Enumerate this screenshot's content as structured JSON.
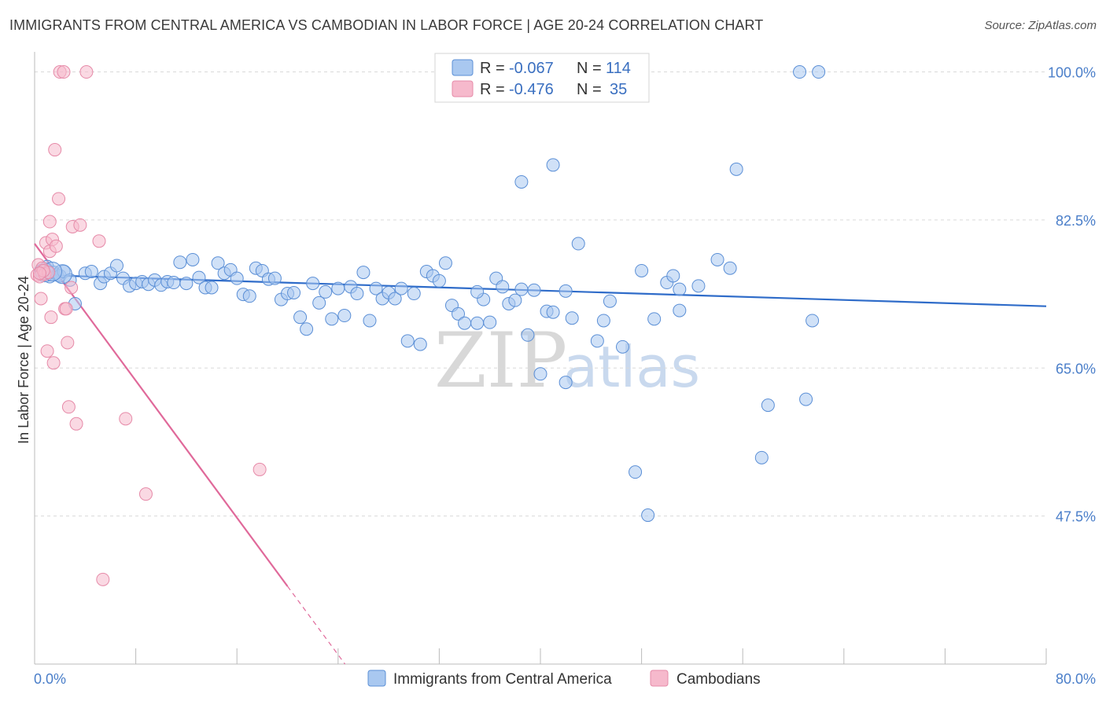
{
  "title": "IMMIGRANTS FROM CENTRAL AMERICA VS CAMBODIAN IN LABOR FORCE | AGE 20-24 CORRELATION CHART",
  "source": "Source: ZipAtlas.com",
  "watermark": {
    "part1": "ZIP",
    "part2": "atlas"
  },
  "colors": {
    "blue_fill": "#a9c8f0",
    "blue_stroke": "#5b8fd6",
    "blue_line": "#2f6cc9",
    "pink_fill": "#f6b9cc",
    "pink_stroke": "#e68aa8",
    "pink_line": "#e0699a",
    "tick_label": "#4a7ec9",
    "grid": "#d9d9d9"
  },
  "legend": {
    "row1": {
      "r_label": "R =",
      "r_value": "-0.067",
      "n_label": "N =",
      "n_value": "114"
    },
    "row2": {
      "r_label": "R =",
      "r_value": "-0.476",
      "n_label": "N =",
      "n_value": "35"
    }
  },
  "bottom_legend": {
    "series1": "Immigrants from Central America",
    "series2": "Cambodians"
  },
  "chart_data": {
    "type": "scatter",
    "xlabel": "",
    "ylabel": "In Labor Force | Age 20-24",
    "xlim": [
      0,
      80
    ],
    "ylim": [
      30,
      102
    ],
    "x_tick_labels": [
      "0.0%",
      "80.0%"
    ],
    "y_ticks": [
      47.5,
      65.0,
      82.5,
      100.0
    ],
    "y_tick_labels": [
      "47.5%",
      "65.0%",
      "82.5%",
      "100.0%"
    ],
    "grid": true,
    "series": [
      {
        "name": "Immigrants from Central America",
        "color": "#a9c8f0",
        "trend": {
          "x": [
            0.3,
            80
          ],
          "y": [
            76.0,
            72.3
          ]
        },
        "points": [
          [
            0.5,
            76.5
          ],
          [
            0.8,
            76.2
          ],
          [
            1.0,
            77.0
          ],
          [
            1.2,
            75.8
          ],
          [
            1.5,
            76.3
          ],
          [
            1.8,
            76.0
          ],
          [
            2.0,
            75.9
          ],
          [
            2.3,
            76.4
          ],
          [
            2.8,
            75.4
          ],
          [
            3.2,
            72.6
          ],
          [
            4.0,
            76.2
          ],
          [
            4.5,
            76.4
          ],
          [
            5.2,
            75.0
          ],
          [
            5.5,
            75.8
          ],
          [
            6.0,
            76.2
          ],
          [
            6.5,
            77.1
          ],
          [
            7.0,
            75.6
          ],
          [
            7.5,
            74.7
          ],
          [
            8.0,
            75.0
          ],
          [
            8.5,
            75.2
          ],
          [
            9.0,
            74.9
          ],
          [
            9.5,
            75.4
          ],
          [
            10.0,
            74.8
          ],
          [
            10.5,
            75.2
          ],
          [
            11.0,
            75.1
          ],
          [
            11.5,
            77.5
          ],
          [
            12.0,
            75.0
          ],
          [
            12.5,
            77.8
          ],
          [
            13.0,
            75.7
          ],
          [
            13.5,
            74.5
          ],
          [
            14.0,
            74.5
          ],
          [
            14.5,
            77.4
          ],
          [
            15.0,
            76.2
          ],
          [
            15.5,
            76.6
          ],
          [
            16.0,
            75.6
          ],
          [
            16.5,
            73.7
          ],
          [
            17.0,
            73.5
          ],
          [
            17.5,
            76.8
          ],
          [
            18.0,
            76.5
          ],
          [
            18.5,
            75.5
          ],
          [
            19.0,
            75.6
          ],
          [
            19.5,
            73.1
          ],
          [
            20.0,
            73.8
          ],
          [
            20.5,
            73.9
          ],
          [
            21.0,
            71.0
          ],
          [
            21.5,
            69.6
          ],
          [
            22.0,
            75.0
          ],
          [
            22.5,
            72.7
          ],
          [
            23.0,
            74.0
          ],
          [
            23.5,
            70.8
          ],
          [
            24.0,
            74.4
          ],
          [
            24.5,
            71.2
          ],
          [
            25.0,
            74.6
          ],
          [
            25.5,
            73.8
          ],
          [
            26.0,
            76.3
          ],
          [
            26.5,
            70.6
          ],
          [
            27.0,
            74.4
          ],
          [
            27.5,
            73.2
          ],
          [
            28.0,
            73.9
          ],
          [
            28.5,
            73.2
          ],
          [
            29.0,
            74.4
          ],
          [
            29.5,
            68.2
          ],
          [
            30.0,
            73.8
          ],
          [
            30.5,
            67.8
          ],
          [
            31.0,
            76.4
          ],
          [
            31.5,
            75.9
          ],
          [
            32.0,
            75.3
          ],
          [
            32.5,
            77.4
          ],
          [
            33.0,
            72.4
          ],
          [
            33.5,
            71.4
          ],
          [
            34.0,
            70.3
          ],
          [
            35.0,
            70.3
          ],
          [
            35.5,
            73.1
          ],
          [
            36.0,
            70.4
          ],
          [
            36.5,
            75.6
          ],
          [
            37.0,
            74.6
          ],
          [
            37.5,
            72.6
          ],
          [
            38.0,
            73.0
          ],
          [
            38.5,
            74.3
          ],
          [
            39.0,
            68.9
          ],
          [
            39.5,
            74.2
          ],
          [
            40.0,
            64.3
          ],
          [
            40.5,
            71.7
          ],
          [
            41.0,
            71.6
          ],
          [
            42.0,
            74.1
          ],
          [
            42.5,
            70.9
          ],
          [
            43.0,
            79.7
          ],
          [
            44.5,
            68.2
          ],
          [
            45.0,
            70.6
          ],
          [
            45.5,
            72.9
          ],
          [
            46.5,
            67.5
          ],
          [
            47.5,
            52.7
          ],
          [
            48.5,
            47.6
          ],
          [
            49.0,
            70.8
          ],
          [
            50.0,
            75.1
          ],
          [
            50.5,
            75.9
          ],
          [
            51.0,
            71.8
          ],
          [
            52.5,
            74.7
          ],
          [
            54.0,
            77.8
          ],
          [
            55.0,
            76.8
          ],
          [
            57.5,
            54.4
          ],
          [
            58.0,
            60.6
          ],
          [
            61.0,
            61.3
          ],
          [
            61.5,
            70.6
          ],
          [
            55.5,
            88.5
          ],
          [
            51.0,
            74.3
          ],
          [
            48.0,
            76.5
          ],
          [
            42.0,
            63.3
          ],
          [
            41.0,
            89.0
          ],
          [
            38.5,
            87.0
          ],
          [
            35.0,
            74.0
          ],
          [
            60.5,
            100.0
          ],
          [
            62.0,
            100.0
          ],
          [
            47.0,
            100.0
          ]
        ]
      },
      {
        "name": "Cambodians",
        "color": "#f6b9cc",
        "trend": {
          "x": [
            0.0,
            20.0
          ],
          "y": [
            79.7,
            39.2
          ]
        },
        "points": [
          [
            0.2,
            76.0
          ],
          [
            0.3,
            77.2
          ],
          [
            0.4,
            75.8
          ],
          [
            0.5,
            73.2
          ],
          [
            0.6,
            76.8
          ],
          [
            0.8,
            76.1
          ],
          [
            0.9,
            79.8
          ],
          [
            1.0,
            67.0
          ],
          [
            1.1,
            76.3
          ],
          [
            1.2,
            78.8
          ],
          [
            1.3,
            71.0
          ],
          [
            1.4,
            80.2
          ],
          [
            1.5,
            65.6
          ],
          [
            1.6,
            90.8
          ],
          [
            1.7,
            79.4
          ],
          [
            1.9,
            85.0
          ],
          [
            2.0,
            100.0
          ],
          [
            2.3,
            100.0
          ],
          [
            2.4,
            72.0
          ],
          [
            2.5,
            72.0
          ],
          [
            2.6,
            68.0
          ],
          [
            2.7,
            60.4
          ],
          [
            2.9,
            74.5
          ],
          [
            3.0,
            81.7
          ],
          [
            3.3,
            58.4
          ],
          [
            3.6,
            81.9
          ],
          [
            4.1,
            100.0
          ],
          [
            5.1,
            80.0
          ],
          [
            7.2,
            59.0
          ],
          [
            8.8,
            50.1
          ],
          [
            5.4,
            40.0
          ],
          [
            17.8,
            53.0
          ],
          [
            1.2,
            82.3
          ],
          [
            0.7,
            76.5
          ],
          [
            0.4,
            76.2
          ]
        ]
      }
    ]
  }
}
